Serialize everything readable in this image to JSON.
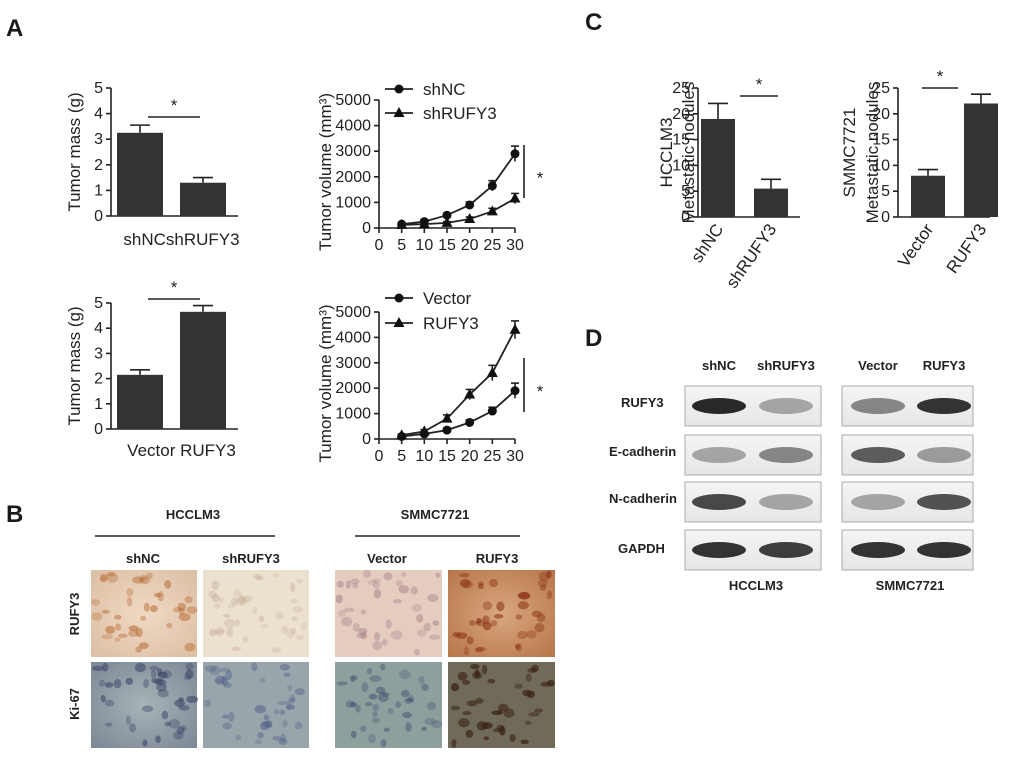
{
  "panel_letters": [
    "A",
    "B",
    "C",
    "D"
  ],
  "chart_data": [
    {
      "id": "A1",
      "type": "bar",
      "categories": [
        "shNC",
        "shRUFY3"
      ],
      "category_label_text": "shNCshRUFY3",
      "values": [
        3.25,
        1.3
      ],
      "errors": [
        0.3,
        0.2
      ],
      "ylabel": "Tumor mass (g)",
      "ylim": [
        0,
        5
      ],
      "yticks": [
        0,
        1,
        2,
        3,
        4,
        5
      ],
      "significance": "*"
    },
    {
      "id": "A2",
      "type": "line",
      "x": [
        5,
        10,
        15,
        20,
        25,
        30
      ],
      "series": [
        {
          "name": "shNC",
          "marker": "circle",
          "values": [
            150,
            250,
            500,
            900,
            1650,
            2900
          ],
          "errors": [
            50,
            60,
            80,
            120,
            200,
            300
          ]
        },
        {
          "name": "shRUFY3",
          "marker": "triangle",
          "values": [
            120,
            150,
            200,
            350,
            650,
            1150
          ],
          "errors": [
            40,
            40,
            50,
            80,
            120,
            200
          ]
        }
      ],
      "ylabel": "Tumor volume (mm³)",
      "ylim": [
        0,
        5000
      ],
      "yticks": [
        0,
        1000,
        2000,
        3000,
        4000,
        5000
      ],
      "xlim": [
        0,
        30
      ],
      "xticks": [
        "0",
        "5",
        "10",
        "15",
        "20",
        "25",
        "30"
      ],
      "significance": "*"
    },
    {
      "id": "A3",
      "type": "bar",
      "categories": [
        "Vector",
        "RUFY3"
      ],
      "category_label_text": "Vector RUFY3",
      "values": [
        2.15,
        4.65
      ],
      "errors": [
        0.2,
        0.25
      ],
      "ylabel": "Tumor mass (g)",
      "ylim": [
        0,
        5
      ],
      "yticks": [
        0,
        1,
        2,
        3,
        4,
        5
      ],
      "significance": "*"
    },
    {
      "id": "A4",
      "type": "line",
      "x": [
        5,
        10,
        15,
        20,
        25,
        30
      ],
      "series": [
        {
          "name": "Vector",
          "marker": "circle",
          "values": [
            100,
            200,
            350,
            650,
            1100,
            1900
          ],
          "errors": [
            40,
            50,
            80,
            100,
            150,
            300
          ]
        },
        {
          "name": "RUFY3",
          "marker": "triangle",
          "values": [
            150,
            300,
            800,
            1750,
            2600,
            4300
          ],
          "errors": [
            50,
            70,
            150,
            200,
            300,
            350
          ]
        }
      ],
      "ylabel": "Tumor volume (mm³)",
      "ylim": [
        0,
        5000
      ],
      "yticks": [
        0,
        1000,
        2000,
        3000,
        4000,
        5000
      ],
      "xlim": [
        0,
        30
      ],
      "xticks": [
        "0",
        "5",
        "10",
        "15",
        "20",
        "25",
        "30"
      ],
      "significance": "*"
    },
    {
      "id": "C1",
      "type": "bar",
      "categories": [
        "shNC",
        "shRUFY3"
      ],
      "values": [
        19,
        5.5
      ],
      "errors": [
        3,
        1.8
      ],
      "ylabel_lines": [
        "HCCLM3",
        "Metastatic nodules"
      ],
      "ylim": [
        0,
        25
      ],
      "yticks": [
        0,
        5,
        10,
        15,
        20,
        25
      ],
      "significance": "*"
    },
    {
      "id": "C2",
      "type": "bar",
      "categories": [
        "Vector",
        "RUFY3"
      ],
      "values": [
        8,
        22
      ],
      "errors": [
        1.2,
        1.8
      ],
      "ylabel_lines": [
        "SMMC7721",
        "Metastatic nodules"
      ],
      "ylim": [
        0,
        25
      ],
      "yticks": [
        0,
        5,
        10,
        15,
        20,
        25
      ],
      "significance": "*"
    }
  ],
  "panel_b": {
    "group_left": "HCCLM3",
    "group_right": "SMMC7721",
    "columns": [
      "shNC",
      "shRUFY3",
      "Vector",
      "RUFY3"
    ],
    "rows": [
      "RUFY3",
      "Ki-67"
    ]
  },
  "panel_d": {
    "columns_left": [
      "shNC",
      "shRUFY3"
    ],
    "columns_right": [
      "Vector",
      "RUFY3"
    ],
    "rows": [
      "RUFY3",
      "E-cadherin",
      "N-cadherin",
      "GAPDH"
    ],
    "footer_left": "HCCLM3",
    "footer_right": "SMMC7721"
  }
}
